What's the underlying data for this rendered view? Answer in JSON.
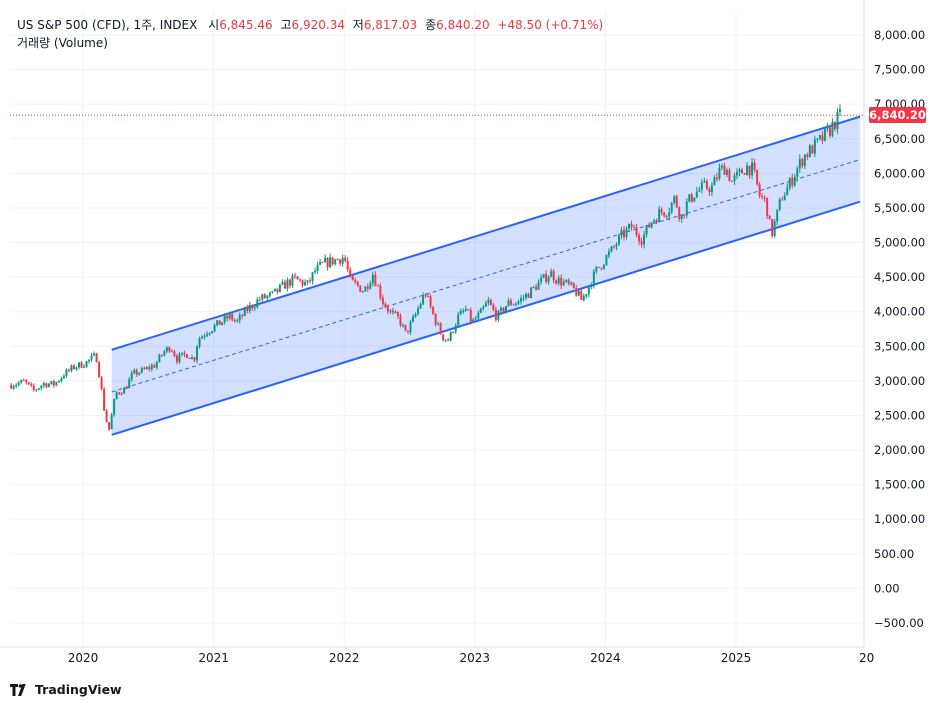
{
  "header": {
    "symbol": "US S&P 500 (CFD), 1주, INDEX",
    "open_label": "시",
    "open_value": "6,845.46",
    "high_label": "고",
    "high_value": "6,920.34",
    "low_label": "저",
    "low_value": "6,817.03",
    "close_label": "종",
    "close_value": "6,840.20",
    "change": "+48.50 (+0.71%)"
  },
  "volume_label": "거래량 (Volume)",
  "last_price_tag": "6,840.20",
  "brand": "TradingView",
  "colors": {
    "up": "#089981",
    "down": "#f23645",
    "channel_line": "#2962ff",
    "channel_fill": "#2962ff",
    "grid": "#f0f3fa",
    "price_line": "#f23645"
  },
  "chart_data": {
    "type": "candlestick",
    "interval": "1 week",
    "x_tick_labels": [
      "2020",
      "2021",
      "2022",
      "2023",
      "2024",
      "2025",
      "20"
    ],
    "y_tick_labels": [
      "8,000.00",
      "7,500.00",
      "7,000.00",
      "6,500.00",
      "6,000.00",
      "5,500.00",
      "5,000.00",
      "4,500.00",
      "4,000.00",
      "3,500.00",
      "3,000.00",
      "2,500.00",
      "2,000.00",
      "1,500.00",
      "1,000.00",
      "500.00",
      "0.00",
      "−500.00"
    ],
    "ylim": [
      -650,
      8200
    ],
    "xlim": [
      2019.45,
      2025.95
    ],
    "last_price": 6840.2,
    "price_path": [
      [
        2019.45,
        2940
      ],
      [
        2019.55,
        2990
      ],
      [
        2019.62,
        2860
      ],
      [
        2019.7,
        2960
      ],
      [
        2019.78,
        2950
      ],
      [
        2019.85,
        3090
      ],
      [
        2019.93,
        3200
      ],
      [
        2020.02,
        3260
      ],
      [
        2020.1,
        3370
      ],
      [
        2020.13,
        3030
      ],
      [
        2020.17,
        2480
      ],
      [
        2020.2,
        2300
      ],
      [
        2020.25,
        2820
      ],
      [
        2020.32,
        2880
      ],
      [
        2020.38,
        3100
      ],
      [
        2020.45,
        3140
      ],
      [
        2020.55,
        3230
      ],
      [
        2020.62,
        3420
      ],
      [
        2020.67,
        3500
      ],
      [
        2020.72,
        3320
      ],
      [
        2020.8,
        3390
      ],
      [
        2020.85,
        3300
      ],
      [
        2020.88,
        3600
      ],
      [
        2020.95,
        3720
      ],
      [
        2021.02,
        3800
      ],
      [
        2021.12,
        3930
      ],
      [
        2021.18,
        3850
      ],
      [
        2021.25,
        4020
      ],
      [
        2021.35,
        4180
      ],
      [
        2021.45,
        4240
      ],
      [
        2021.55,
        4400
      ],
      [
        2021.62,
        4470
      ],
      [
        2021.72,
        4390
      ],
      [
        2021.78,
        4600
      ],
      [
        2021.85,
        4700
      ],
      [
        2021.95,
        4760
      ],
      [
        2022.0,
        4790
      ],
      [
        2022.05,
        4420
      ],
      [
        2022.1,
        4380
      ],
      [
        2022.15,
        4300
      ],
      [
        2022.22,
        4550
      ],
      [
        2022.3,
        4130
      ],
      [
        2022.37,
        3950
      ],
      [
        2022.42,
        3900
      ],
      [
        2022.47,
        3680
      ],
      [
        2022.53,
        3890
      ],
      [
        2022.62,
        4280
      ],
      [
        2022.68,
        3960
      ],
      [
        2022.75,
        3640
      ],
      [
        2022.8,
        3590
      ],
      [
        2022.87,
        3920
      ],
      [
        2022.93,
        4030
      ],
      [
        2022.98,
        3840
      ],
      [
        2023.05,
        3990
      ],
      [
        2023.1,
        4150
      ],
      [
        2023.17,
        3920
      ],
      [
        2023.25,
        4120
      ],
      [
        2023.33,
        4140
      ],
      [
        2023.42,
        4280
      ],
      [
        2023.5,
        4430
      ],
      [
        2023.58,
        4560
      ],
      [
        2023.63,
        4460
      ],
      [
        2023.7,
        4400
      ],
      [
        2023.77,
        4300
      ],
      [
        2023.82,
        4160
      ],
      [
        2023.88,
        4400
      ],
      [
        2023.93,
        4590
      ],
      [
        2024.0,
        4770
      ],
      [
        2024.05,
        4890
      ],
      [
        2024.12,
        5090
      ],
      [
        2024.2,
        5230
      ],
      [
        2024.28,
        5050
      ],
      [
        2024.35,
        5300
      ],
      [
        2024.42,
        5440
      ],
      [
        2024.48,
        5470
      ],
      [
        2024.53,
        5640
      ],
      [
        2024.58,
        5350
      ],
      [
        2024.62,
        5550
      ],
      [
        2024.68,
        5710
      ],
      [
        2024.75,
        5800
      ],
      [
        2024.82,
        5800
      ],
      [
        2024.87,
        6030
      ],
      [
        2024.92,
        6090
      ],
      [
        2024.97,
        5880
      ],
      [
        2025.02,
        5970
      ],
      [
        2025.08,
        6100
      ],
      [
        2025.13,
        6050
      ],
      [
        2025.18,
        5680
      ],
      [
        2025.23,
        5580
      ],
      [
        2025.27,
        5100
      ],
      [
        2025.3,
        5300
      ],
      [
        2025.35,
        5660
      ],
      [
        2025.4,
        5800
      ],
      [
        2025.45,
        6000
      ],
      [
        2025.52,
        6250
      ],
      [
        2025.58,
        6350
      ],
      [
        2025.65,
        6480
      ],
      [
        2025.7,
        6580
      ],
      [
        2025.75,
        6720
      ],
      [
        2025.8,
        6840.2
      ]
    ],
    "channel": {
      "start": {
        "x": 2020.22,
        "upper": 3450,
        "mid": 2840,
        "lower": 2220
      },
      "end": {
        "x": 2025.95,
        "upper": 6820,
        "mid": 6200,
        "lower": 5590
      }
    }
  }
}
